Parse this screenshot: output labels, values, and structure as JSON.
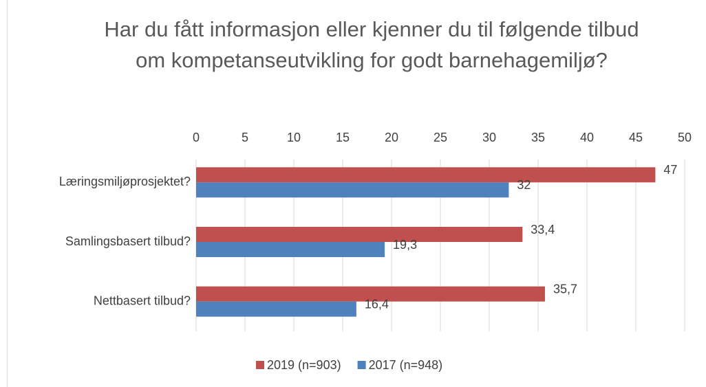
{
  "chart_data": {
    "type": "hbar",
    "title": "Har du fått informasjon eller kjenner du til følgende tilbud om kompetanseutvikling for godt barnehagemiljø?",
    "categories": [
      "Læringsmiljøprosjektet?",
      "Samlingsbasert tilbud?",
      "Nettbasert tilbud?"
    ],
    "series": [
      {
        "name": "2019 (n=903)",
        "color": "#c0504d",
        "values": [
          47,
          33.4,
          35.7
        ],
        "value_labels": [
          "47",
          "33,4",
          "35,7"
        ]
      },
      {
        "name": "2017 (n=948)",
        "color": "#4f81bd",
        "values": [
          32,
          19.3,
          16.4
        ],
        "value_labels": [
          "32",
          "19,3",
          "16,4"
        ]
      }
    ],
    "xlim": [
      0,
      50
    ],
    "xticks": [
      0,
      5,
      10,
      15,
      20,
      25,
      30,
      35,
      40,
      45,
      50
    ],
    "grid": true,
    "legend": "bottom"
  }
}
